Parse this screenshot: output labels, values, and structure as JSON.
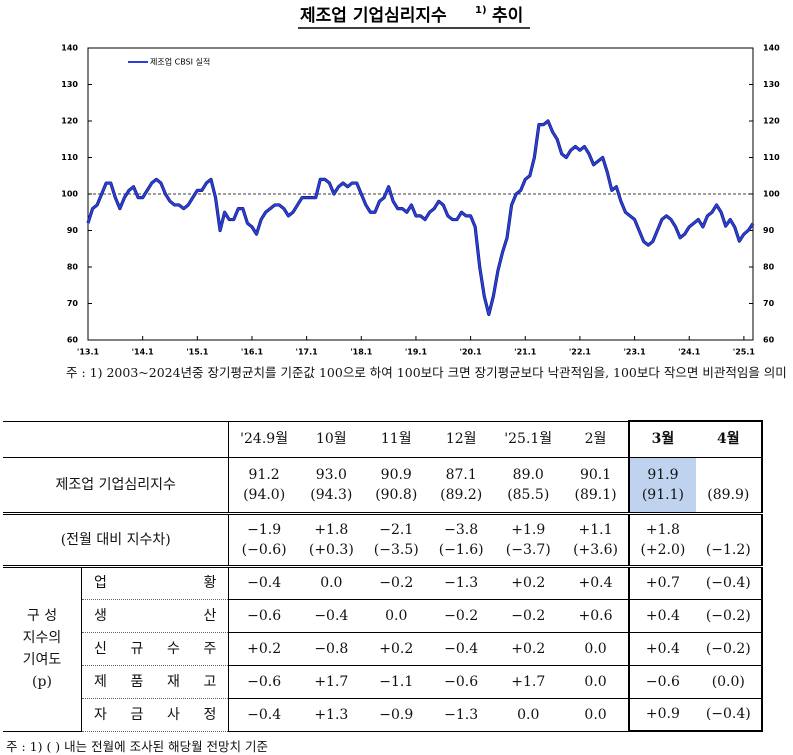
{
  "chart_data": {
    "type": "line",
    "title": "제조업 기업심리지수",
    "title_note": "1)",
    "title_tail": "추이",
    "categories": [
      "'13.1",
      null,
      null,
      null,
      null,
      null,
      null,
      null,
      null,
      null,
      null,
      null,
      "'14.1",
      null,
      null,
      null,
      null,
      null,
      null,
      null,
      null,
      null,
      null,
      null,
      "'15.1",
      null,
      null,
      null,
      null,
      null,
      null,
      null,
      null,
      null,
      null,
      null,
      "'16.1",
      null,
      null,
      null,
      null,
      null,
      null,
      null,
      null,
      null,
      null,
      null,
      "'17.1",
      null,
      null,
      null,
      null,
      null,
      null,
      null,
      null,
      null,
      null,
      null,
      "'18.1",
      null,
      null,
      null,
      null,
      null,
      null,
      null,
      null,
      null,
      null,
      null,
      "'19.1",
      null,
      null,
      null,
      null,
      null,
      null,
      null,
      null,
      null,
      null,
      null,
      "'20.1",
      null,
      null,
      null,
      null,
      null,
      null,
      null,
      null,
      null,
      null,
      null,
      "'21.1",
      null,
      null,
      null,
      null,
      null,
      null,
      null,
      null,
      null,
      null,
      null,
      "'22.1",
      null,
      null,
      null,
      null,
      null,
      null,
      null,
      null,
      null,
      null,
      null,
      "'23.1",
      null,
      null,
      null,
      null,
      null,
      null,
      null,
      null,
      null,
      null,
      null,
      "'24.1",
      null,
      null,
      null,
      null,
      null,
      null,
      null,
      null,
      null,
      null,
      null,
      "'25.1",
      null,
      null
    ],
    "series": [
      {
        "name": "제조업 CBSI 실적",
        "color": "#2b3fd8",
        "values": [
          92,
          96,
          97,
          100,
          103,
          103,
          99,
          96,
          99,
          101,
          102,
          99,
          99,
          101,
          103,
          104,
          103,
          100,
          98,
          97,
          97,
          96,
          97,
          99,
          101,
          101,
          103,
          104,
          99,
          90,
          95,
          93,
          93,
          96,
          96,
          92,
          91,
          89,
          93,
          95,
          96,
          97,
          97,
          96,
          94,
          95,
          97,
          99,
          99,
          99,
          99,
          104,
          104,
          103,
          100,
          102,
          103,
          102,
          103,
          103,
          100,
          97,
          95,
          95,
          98,
          99,
          102,
          98,
          96,
          96,
          95,
          97,
          94,
          94,
          93,
          95,
          96,
          98,
          97,
          94,
          93,
          93,
          95,
          94,
          94,
          91,
          80,
          72,
          67,
          72,
          79,
          84,
          88,
          97,
          100,
          101,
          104,
          105,
          110,
          119,
          119,
          120,
          117,
          115,
          111,
          110,
          112,
          113,
          112,
          113,
          111,
          108,
          109,
          110,
          106,
          101,
          102,
          98,
          95,
          94,
          93,
          90,
          87,
          86,
          87,
          90,
          93,
          94,
          93,
          91,
          88,
          89,
          91,
          92,
          93,
          91,
          94,
          95,
          97,
          95,
          91.2,
          93.0,
          90.9,
          87.1,
          89.0,
          90.1,
          91.9
        ]
      }
    ],
    "ylim": [
      60,
      140
    ],
    "yticks": [
      60,
      70,
      80,
      90,
      100,
      110,
      120,
      130,
      140
    ],
    "reference_line": 100,
    "legend": "upper-left"
  },
  "chart_note": "주 : 1) 2003~2024년중 장기평균치를 기준값 100으로 하여 100보다 크면 장기평균보다 낙관적임을, 100보다 작으면 비관적임을 의미",
  "table": {
    "header": [
      "'24.9월",
      "10월",
      "11월",
      "12월",
      "'25.1월",
      "2월",
      "3월",
      "4월"
    ],
    "rows": [
      {
        "label": "제조업 기업심리지수",
        "cells": [
          [
            "91.2",
            "(94.0)"
          ],
          [
            "93.0",
            "(94.3)"
          ],
          [
            "90.9",
            "(90.8)"
          ],
          [
            "87.1",
            "(89.2)"
          ],
          [
            "89.0",
            "(85.5)"
          ],
          [
            "90.1",
            "(89.1)"
          ],
          [
            "91.9",
            "(91.1)"
          ],
          [
            "(89.9)"
          ]
        ]
      },
      {
        "label": "(전월 대비 지수차)",
        "cells": [
          [
            "−1.9",
            "(−0.6)"
          ],
          [
            "+1.8",
            "(+0.3)"
          ],
          [
            "−2.1",
            "(−3.5)"
          ],
          [
            "−3.8",
            "(−1.6)"
          ],
          [
            "+1.9",
            "(−3.7)"
          ],
          [
            "+1.1",
            "(+3.6)"
          ],
          [
            "+1.8",
            "(+2.0)"
          ],
          [
            "(−1.2)"
          ]
        ]
      }
    ],
    "group_label": [
      "구 성",
      "지수의",
      "기여도",
      "(p)"
    ],
    "group_rows": [
      {
        "label": "업 황",
        "cells": [
          "−0.4",
          "0.0",
          "−0.2",
          "−1.3",
          "+0.2",
          "+0.4",
          "+0.7",
          "(−0.4)"
        ]
      },
      {
        "label": "생 산",
        "cells": [
          "−0.6",
          "−0.4",
          "0.0",
          "−0.2",
          "−0.2",
          "+0.6",
          "+0.4",
          "(−0.2)"
        ]
      },
      {
        "label": "신 규 수 주",
        "cells": [
          "+0.2",
          "−0.8",
          "+0.2",
          "−0.4",
          "+0.2",
          "0.0",
          "+0.4",
          "(−0.2)"
        ]
      },
      {
        "label": "제 품 재 고",
        "cells": [
          "−0.6",
          "+1.7",
          "−1.1",
          "−0.6",
          "+1.7",
          "0.0",
          "−0.6",
          "(0.0)"
        ]
      },
      {
        "label": "자 금 사 정",
        "cells": [
          "−0.4",
          "+1.3",
          "−0.9",
          "−1.3",
          "0.0",
          "0.0",
          "+0.9",
          "(−0.4)"
        ]
      }
    ]
  },
  "table_note": "주 : 1) ( ) 내는 전월에 조사된 해당월 전망치 기준"
}
